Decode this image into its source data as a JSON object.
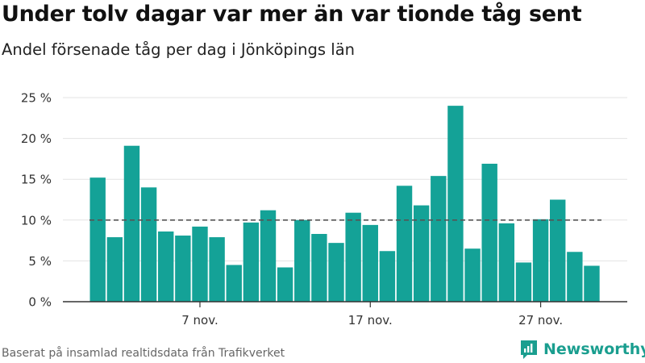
{
  "chart_data": {
    "type": "bar",
    "title": "Under tolv dagar var mer än var tionde tåg sent",
    "subtitle": "Andel försenade tåg per dag i Jönköpings län",
    "ylim": [
      0,
      25
    ],
    "yticks": [
      0,
      5,
      10,
      15,
      20,
      25
    ],
    "ytick_labels": [
      "0 %",
      "5 %",
      "10 %",
      "15 %",
      "20 %",
      "25 %"
    ],
    "reference_line": 10,
    "x_start_day": 1,
    "xticks": [
      {
        "day": 7,
        "label": "7 nov."
      },
      {
        "day": 17,
        "label": "17 nov."
      },
      {
        "day": 27,
        "label": "27 nov."
      }
    ],
    "values": [
      15.2,
      7.9,
      19.1,
      14.0,
      8.6,
      8.1,
      9.2,
      7.9,
      4.5,
      9.7,
      11.2,
      4.2,
      10.0,
      8.3,
      7.2,
      10.9,
      9.4,
      6.2,
      14.2,
      11.8,
      15.4,
      24.0,
      6.5,
      16.9,
      9.6,
      4.8,
      10.1,
      12.5,
      6.1,
      4.4
    ],
    "bar_color": "#14a297",
    "grid": true,
    "legend": "none"
  },
  "footer": {
    "source": "Baserat på insamlad realtidsdata från Trafikverket",
    "brand": "Newsworthy"
  }
}
